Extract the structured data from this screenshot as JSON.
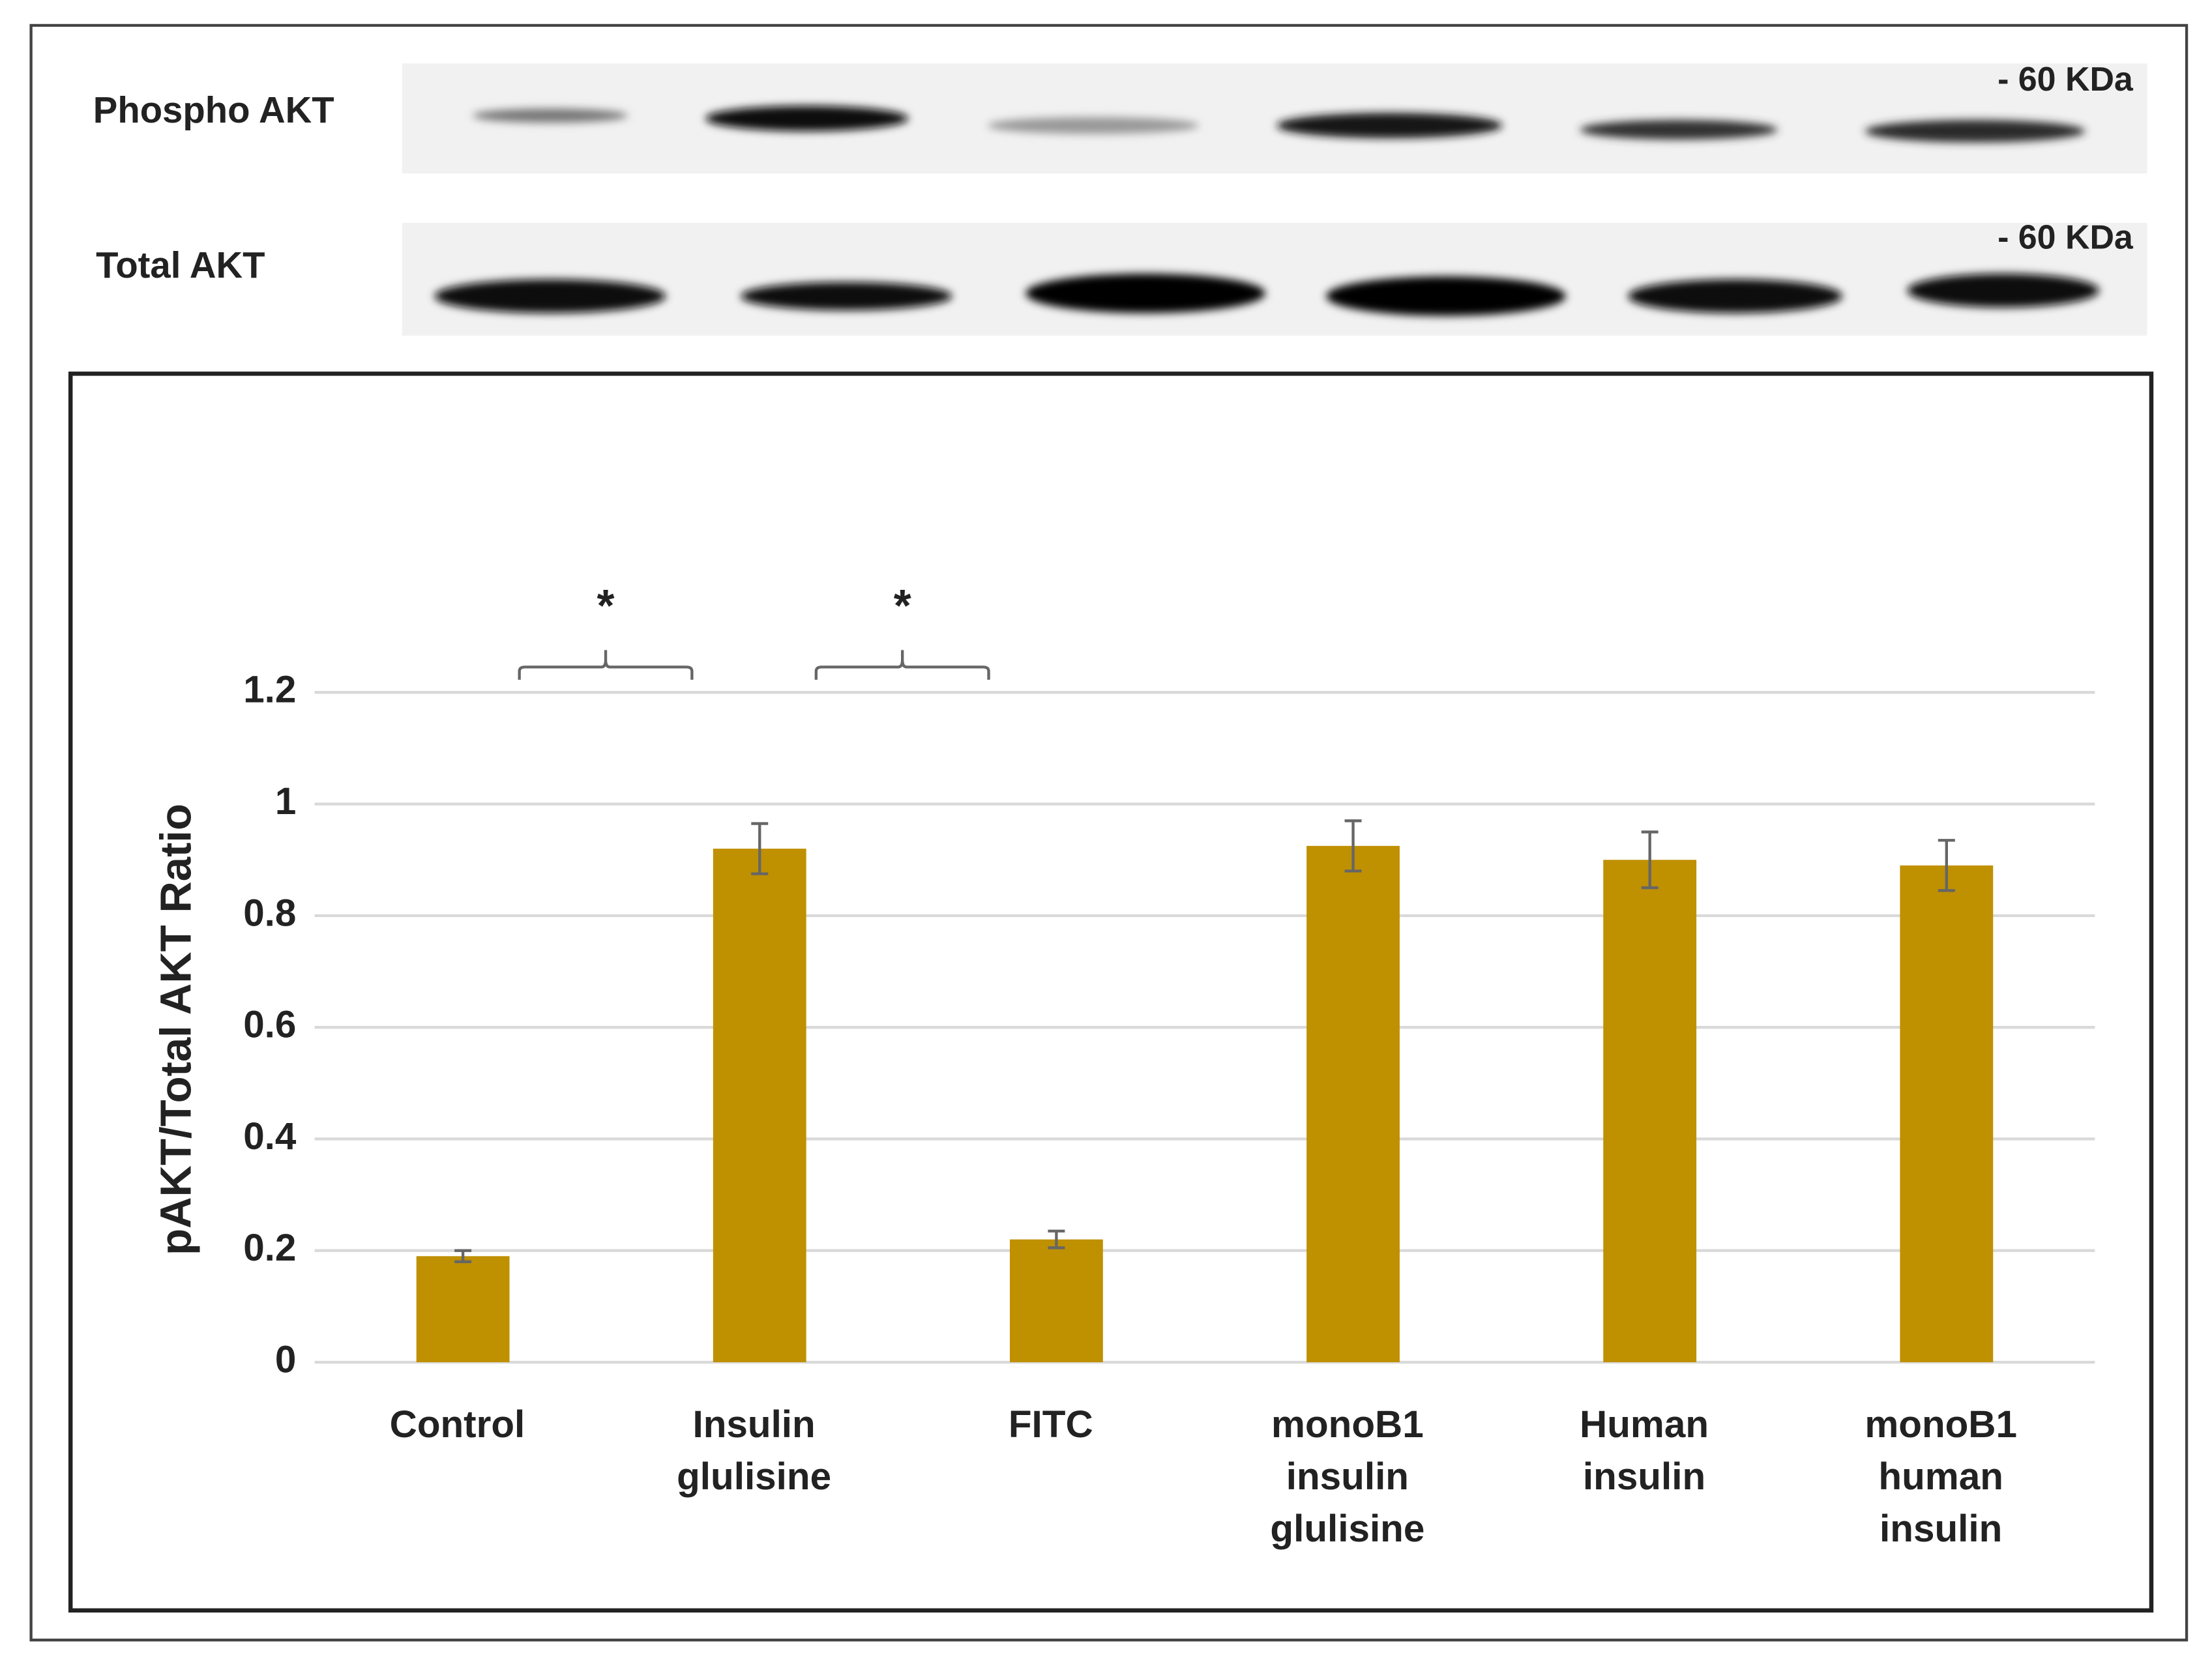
{
  "blot": {
    "rows": [
      {
        "label": "Phospho AKT",
        "marker": "- 60 KDa"
      },
      {
        "label": "Total AKT",
        "marker": "- 60 KDa"
      }
    ]
  },
  "chart_data": {
    "type": "bar",
    "y_label": "pAKT/Total AKT Ratio",
    "categories": [
      [
        "Control"
      ],
      [
        "Insulin",
        "glulisine"
      ],
      [
        "FITC"
      ],
      [
        "monoB1",
        "insulin",
        "glulisine"
      ],
      [
        "Human",
        "insulin"
      ],
      [
        "monoB1",
        "human",
        "insulin"
      ]
    ],
    "values": [
      0.19,
      0.92,
      0.22,
      0.925,
      0.9,
      0.89
    ],
    "errors": [
      0.01,
      0.045,
      0.015,
      0.045,
      0.05,
      0.045
    ],
    "color": "#bf9000",
    "ylim": [
      0,
      1.2
    ],
    "yticks": [
      0,
      0.2,
      0.4,
      0.6,
      0.8,
      1,
      1.2
    ],
    "grid": true,
    "annotations": [
      "*",
      "*"
    ]
  }
}
